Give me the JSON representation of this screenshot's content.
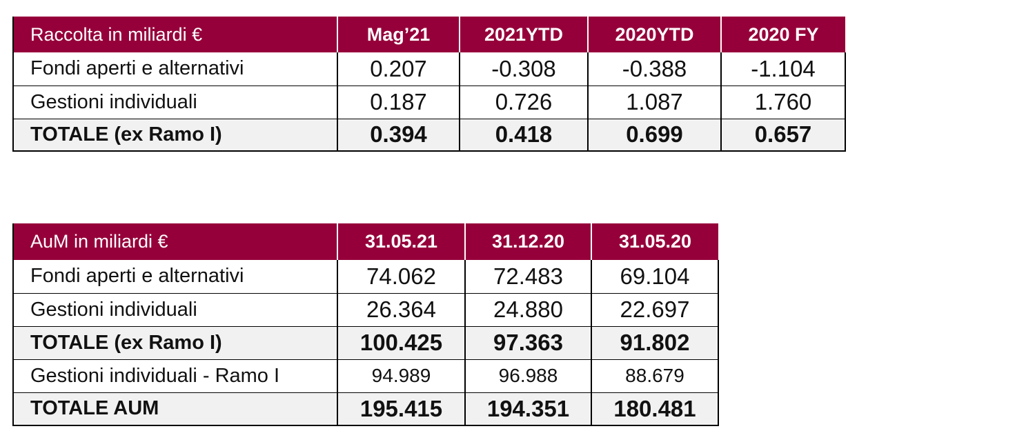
{
  "table1": {
    "header": [
      "Raccolta in miliardi €",
      "Mag’21",
      "2021YTD",
      "2020YTD",
      "2020 FY"
    ],
    "rows": [
      {
        "label": "Fondi aperti e alternativi",
        "values": [
          "0.207",
          "-0.308",
          "-0.388",
          "-1.104"
        ]
      },
      {
        "label": "Gestioni individuali",
        "values": [
          "0.187",
          "0.726",
          "1.087",
          "1.760"
        ]
      },
      {
        "label": "TOTALE (ex Ramo I)",
        "values": [
          "0.394",
          "0.418",
          "0.699",
          "0.657"
        ]
      }
    ]
  },
  "table2": {
    "header": [
      "AuM in miliardi €",
      "31.05.21",
      "31.12.20",
      "31.05.20"
    ],
    "rows": [
      {
        "label": "Fondi aperti e alternativi",
        "values": [
          "74.062",
          "72.483",
          "69.104"
        ]
      },
      {
        "label": "Gestioni individuali",
        "values": [
          "26.364",
          "24.880",
          "22.697"
        ]
      },
      {
        "label": "TOTALE (ex Ramo I)",
        "values": [
          "100.425",
          "97.363",
          "91.802"
        ]
      },
      {
        "label": "Gestioni individuali - Ramo I",
        "values": [
          "94.989",
          "96.988",
          "88.679"
        ]
      },
      {
        "label": "TOTALE AUM",
        "values": [
          "195.415",
          "194.351",
          "180.481"
        ]
      }
    ]
  },
  "colors": {
    "header_bg": "#96003a",
    "header_text": "#ffffff",
    "total_row_bg": "#f1f1f1"
  }
}
